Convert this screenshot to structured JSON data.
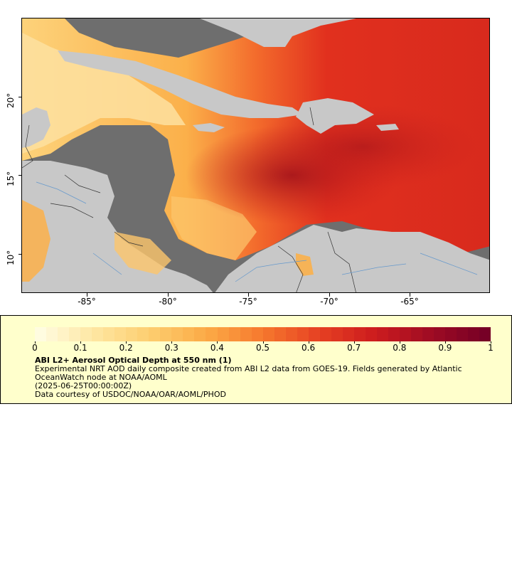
{
  "map": {
    "x_axis_ticks": [
      "-85°",
      "-80°",
      "-75°",
      "-70°",
      "-65°"
    ],
    "y_axis_ticks": [
      "20°",
      "15°",
      "10°"
    ],
    "colors": {
      "land": "#c8c8c8",
      "no_data": "#6e6e6e",
      "borders": "#333333",
      "rivers": "#6699cc"
    }
  },
  "legend": {
    "colorbar_labels": [
      "0",
      "0.1",
      "0.2",
      "0.3",
      "0.4",
      "0.5",
      "0.6",
      "0.7",
      "0.8",
      "0.9",
      "1"
    ],
    "title": "ABI L2+ Aerosol Optical Depth at 550 nm (1)",
    "description": "Experimental NRT AOD daily composite created from ABI L2 data from GOES-19. Fields generated by Atlantic OceanWatch node at NOAA/AOML",
    "date": "(2025-06-25T00:00:00Z)",
    "credit": "Data courtesy of USDOC/NOAA/OAR/AOML/PHOD"
  }
}
